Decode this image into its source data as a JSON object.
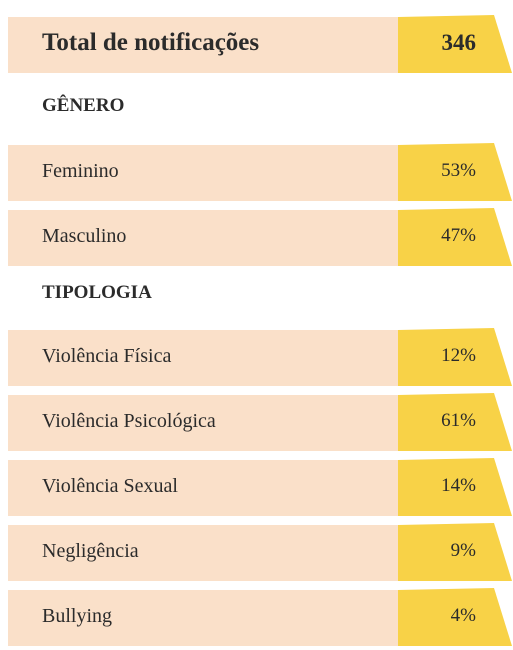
{
  "total": {
    "label": "Total de notificações",
    "value": "346"
  },
  "sections": [
    {
      "title": "GÊNERO",
      "rows": [
        {
          "label": "Feminino",
          "value": "53%"
        },
        {
          "label": "Masculino",
          "value": "47%"
        }
      ]
    },
    {
      "title": "TIPOLOGIA",
      "rows": [
        {
          "label": "Violência Física",
          "value": "12%"
        },
        {
          "label": "Violência Psicológica",
          "value": "61%"
        },
        {
          "label": "Violência Sexual",
          "value": "14%"
        },
        {
          "label": "Negligência",
          "value": "9%"
        },
        {
          "label": "Bullying",
          "value": "4%"
        }
      ]
    }
  ]
}
